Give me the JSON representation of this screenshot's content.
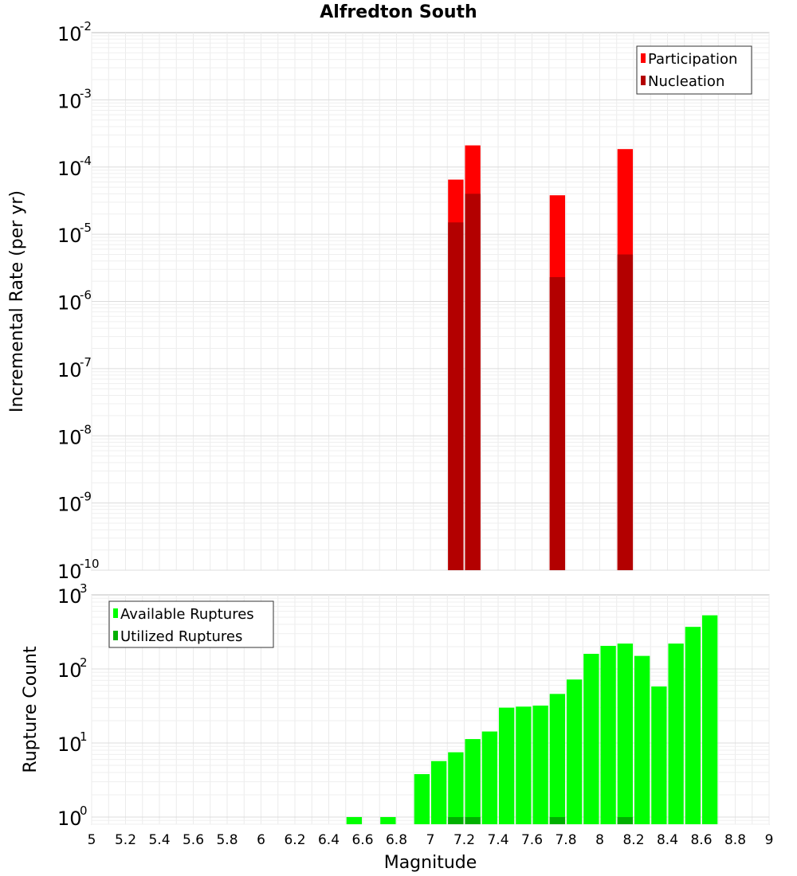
{
  "title": "Alfredton South",
  "chart_data": [
    {
      "type": "bar",
      "panel": "top",
      "ylabel": "Incremental Rate (per yr)",
      "yscale": "log",
      "ylim": [
        1e-10,
        0.01
      ],
      "yticks": [
        {
          "base": "10",
          "exp": "-10",
          "value": 1e-10
        },
        {
          "base": "10",
          "exp": "-9",
          "value": 1e-09
        },
        {
          "base": "10",
          "exp": "-8",
          "value": 1e-08
        },
        {
          "base": "10",
          "exp": "-7",
          "value": 1e-07
        },
        {
          "base": "10",
          "exp": "-6",
          "value": 1e-06
        },
        {
          "base": "10",
          "exp": "-5",
          "value": 1e-05
        },
        {
          "base": "10",
          "exp": "-4",
          "value": 0.0001
        },
        {
          "base": "10",
          "exp": "-3",
          "value": 0.001
        },
        {
          "base": "10",
          "exp": "-2",
          "value": 0.01
        }
      ],
      "legend_position": "top-right",
      "grid": true,
      "series": [
        {
          "name": "Participation",
          "color": "#ff0000",
          "points": [
            {
              "x": 7.15,
              "y": 6.5e-05
            },
            {
              "x": 7.25,
              "y": 0.00021
            },
            {
              "x": 7.75,
              "y": 3.8e-05
            },
            {
              "x": 8.15,
              "y": 0.000185
            }
          ]
        },
        {
          "name": "Nucleation",
          "color": "#b30000",
          "points": [
            {
              "x": 7.15,
              "y": 1.5e-05
            },
            {
              "x": 7.25,
              "y": 4e-05
            },
            {
              "x": 7.75,
              "y": 2.3e-06
            },
            {
              "x": 8.15,
              "y": 5e-06
            }
          ]
        }
      ]
    },
    {
      "type": "bar",
      "panel": "bottom",
      "ylabel": "Rupture Count",
      "yscale": "log",
      "ylim": [
        0.8,
        1000
      ],
      "yticks": [
        {
          "base": "10",
          "exp": "0",
          "value": 1
        },
        {
          "base": "10",
          "exp": "1",
          "value": 10
        },
        {
          "base": "10",
          "exp": "2",
          "value": 100
        },
        {
          "base": "10",
          "exp": "3",
          "value": 1000
        }
      ],
      "legend_position": "top-left",
      "grid": true,
      "series": [
        {
          "name": "Available Ruptures",
          "color": "#00ff00",
          "points": [
            {
              "x": 6.55,
              "y": 1
            },
            {
              "x": 6.75,
              "y": 1
            },
            {
              "x": 6.95,
              "y": 3.8
            },
            {
              "x": 7.05,
              "y": 5.7
            },
            {
              "x": 7.15,
              "y": 7.5
            },
            {
              "x": 7.25,
              "y": 11.3
            },
            {
              "x": 7.35,
              "y": 14.3
            },
            {
              "x": 7.45,
              "y": 30
            },
            {
              "x": 7.55,
              "y": 31
            },
            {
              "x": 7.65,
              "y": 32
            },
            {
              "x": 7.75,
              "y": 46
            },
            {
              "x": 7.85,
              "y": 72
            },
            {
              "x": 7.95,
              "y": 160
            },
            {
              "x": 8.05,
              "y": 205
            },
            {
              "x": 8.15,
              "y": 220
            },
            {
              "x": 8.25,
              "y": 150
            },
            {
              "x": 8.35,
              "y": 58
            },
            {
              "x": 8.45,
              "y": 220
            },
            {
              "x": 8.55,
              "y": 370
            },
            {
              "x": 8.65,
              "y": 530
            }
          ]
        },
        {
          "name": "Utilized Ruptures",
          "color": "#00b000",
          "points": [
            {
              "x": 7.15,
              "y": 1
            },
            {
              "x": 7.25,
              "y": 1
            },
            {
              "x": 7.75,
              "y": 1
            },
            {
              "x": 8.15,
              "y": 1
            }
          ]
        }
      ]
    }
  ],
  "x_axis": {
    "label": "Magnitude",
    "range": [
      5,
      9
    ],
    "ticks": [
      "5",
      "5.2",
      "5.4",
      "5.6",
      "5.8",
      "6",
      "6.2",
      "6.4",
      "6.6",
      "6.8",
      "7",
      "7.2",
      "7.4",
      "7.6",
      "7.8",
      "8",
      "8.2",
      "8.4",
      "8.6",
      "8.8",
      "9"
    ]
  }
}
